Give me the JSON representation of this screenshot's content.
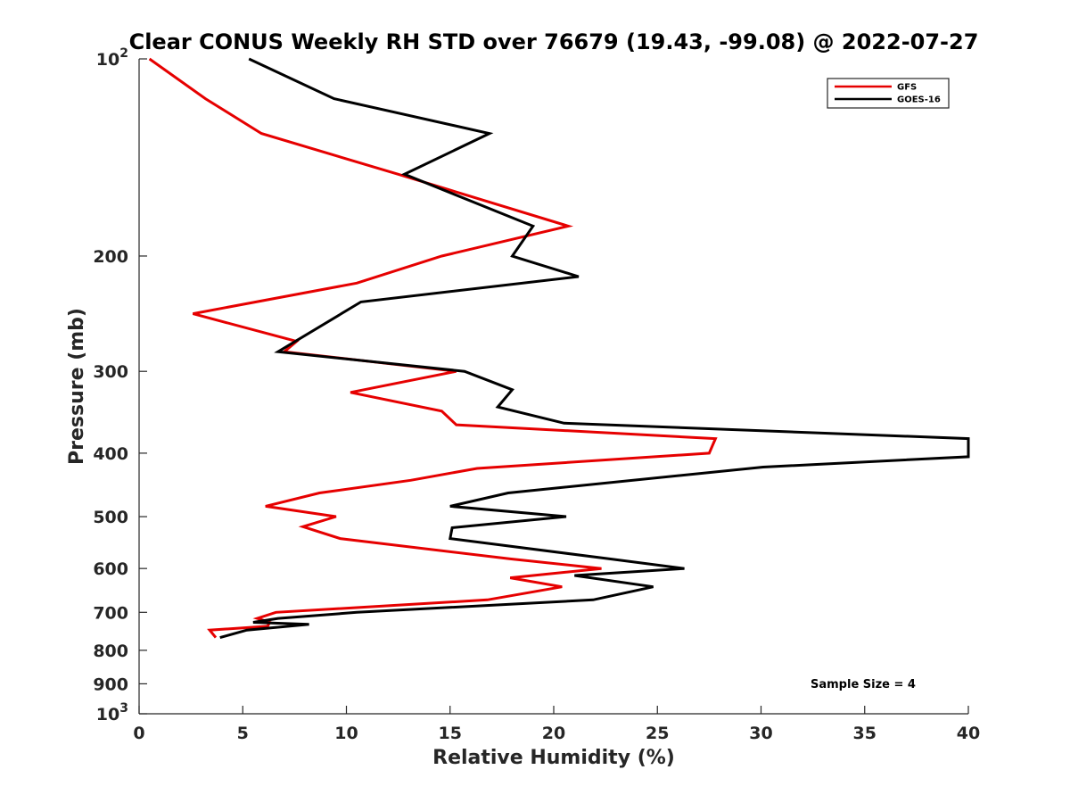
{
  "chart_data": {
    "type": "line",
    "title": "Clear CONUS Weekly RH STD over 76679 (19.43, -99.08) @ 2022-07-27",
    "xlabel": "Relative Humidity (%)",
    "ylabel": "Pressure (mb)",
    "xlim": [
      0,
      40
    ],
    "ylim": [
      100,
      1000
    ],
    "y_scale": "log",
    "y_reversed": true,
    "grid": false,
    "legend_position": "top-right",
    "x_ticks": [
      0,
      5,
      10,
      15,
      20,
      25,
      30,
      35,
      40
    ],
    "x_tick_labels": [
      "0",
      "5",
      "10",
      "15",
      "20",
      "25",
      "30",
      "35",
      "40"
    ],
    "y_ticks": [
      100,
      200,
      300,
      400,
      500,
      600,
      700,
      800,
      900,
      1000
    ],
    "y_tick_labels": [
      {
        "base": "10",
        "exp": "2"
      },
      {
        "base": "200",
        "exp": ""
      },
      {
        "base": "300",
        "exp": ""
      },
      {
        "base": "400",
        "exp": ""
      },
      {
        "base": "500",
        "exp": ""
      },
      {
        "base": "600",
        "exp": ""
      },
      {
        "base": "700",
        "exp": ""
      },
      {
        "base": "800",
        "exp": ""
      },
      {
        "base": "900",
        "exp": ""
      },
      {
        "base": "10",
        "exp": "3"
      }
    ],
    "series": [
      {
        "name": "GFS",
        "color": "#e60000",
        "points": [
          [
            0.5,
            100
          ],
          [
            3.2,
            115
          ],
          [
            5.9,
            130
          ],
          [
            12.5,
            150
          ],
          [
            20.7,
            180
          ],
          [
            14.6,
            200
          ],
          [
            10.5,
            220
          ],
          [
            2.6,
            245
          ],
          [
            7.6,
            270
          ],
          [
            7.0,
            280
          ],
          [
            15.3,
            300
          ],
          [
            10.2,
            323
          ],
          [
            14.6,
            345
          ],
          [
            15.3,
            362
          ],
          [
            27.8,
            380
          ],
          [
            27.5,
            400
          ],
          [
            16.3,
            422
          ],
          [
            13.1,
            440
          ],
          [
            8.7,
            460
          ],
          [
            6.1,
            482
          ],
          [
            9.5,
            500
          ],
          [
            7.9,
            518
          ],
          [
            9.7,
            540
          ],
          [
            17.9,
            580
          ],
          [
            22.3,
            600
          ],
          [
            17.9,
            620
          ],
          [
            20.4,
            640
          ],
          [
            16.8,
            670
          ],
          [
            6.6,
            700
          ],
          [
            5.7,
            715
          ],
          [
            6.3,
            725
          ],
          [
            6.2,
            735
          ],
          [
            3.4,
            745
          ],
          [
            3.7,
            765
          ]
        ]
      },
      {
        "name": "GOES-16",
        "color": "#000000",
        "points": [
          [
            5.3,
            100
          ],
          [
            9.4,
            115
          ],
          [
            16.9,
            130
          ],
          [
            12.8,
            150
          ],
          [
            19.0,
            180
          ],
          [
            18.0,
            200
          ],
          [
            21.2,
            215
          ],
          [
            10.7,
            235
          ],
          [
            6.7,
            280
          ],
          [
            15.7,
            300
          ],
          [
            18.0,
            320
          ],
          [
            17.3,
            340
          ],
          [
            20.5,
            360
          ],
          [
            40.0,
            380
          ],
          [
            40.0,
            405
          ],
          [
            30.1,
            420
          ],
          [
            17.8,
            460
          ],
          [
            15.0,
            482
          ],
          [
            20.6,
            500
          ],
          [
            15.1,
            520
          ],
          [
            15.0,
            540
          ],
          [
            22.7,
            580
          ],
          [
            26.3,
            600
          ],
          [
            21.0,
            615
          ],
          [
            24.8,
            640
          ],
          [
            21.9,
            670
          ],
          [
            10.5,
            700
          ],
          [
            6.7,
            715
          ],
          [
            5.5,
            725
          ],
          [
            8.2,
            730
          ],
          [
            5.2,
            745
          ],
          [
            3.9,
            765
          ]
        ]
      }
    ],
    "annotations": [
      "Sample Size = 4"
    ]
  }
}
